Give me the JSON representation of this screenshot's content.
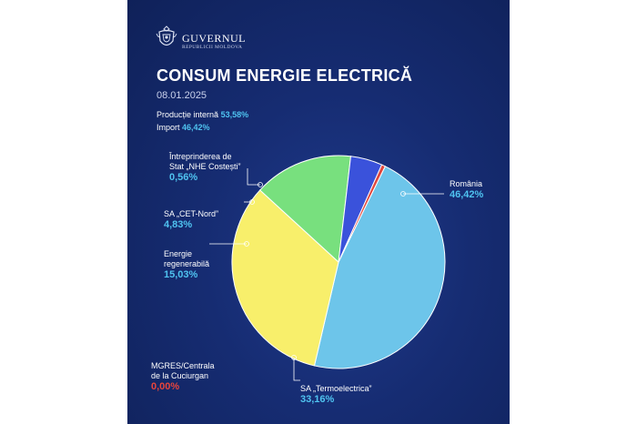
{
  "brand": {
    "name": "GUVERNUL",
    "sub": "REPUBLICII MOLDOVA"
  },
  "title": "CONSUM ENERGIE ELECTRICĂ",
  "date": "08.01.2025",
  "summary": {
    "internal_label": "Producție internă",
    "internal_value": "53,58%",
    "import_label": "Import",
    "import_value": "46,42%"
  },
  "chart_data": {
    "type": "pie",
    "title": "CONSUM ENERGIE ELECTRICĂ",
    "slices": [
      {
        "name": "România",
        "value": 46.42,
        "label": "46,42%",
        "color": "#6dc5ea"
      },
      {
        "name": "SA „Termoelectrica”",
        "value": 33.16,
        "label": "33,16%",
        "color": "#f8ef6b"
      },
      {
        "name": "Energie regenerabilă",
        "value": 15.03,
        "label": "15,03%",
        "color": "#78e07e"
      },
      {
        "name": "SA „CET-Nord”",
        "value": 4.83,
        "label": "4,83%",
        "color": "#3a52db"
      },
      {
        "name": "Întreprinderea de Stat „NHE Costești”",
        "value": 0.56,
        "label": "0,56%",
        "color": "#e0463c"
      },
      {
        "name": "MGRES/Centrala de la Cuciurgan",
        "value": 0.0,
        "label": "0,00%",
        "color": "#e8453c"
      }
    ]
  },
  "labels": {
    "romania": {
      "l1": "România",
      "v": "46,42%"
    },
    "termo": {
      "l1": "SA „Termoelectrica”",
      "v": "33,16%"
    },
    "regen": {
      "l1": "Energie",
      "l2": "regenerabilă",
      "v": "15,03%"
    },
    "cet": {
      "l1": "SA „CET-Nord”",
      "v": "4,83%"
    },
    "nhe": {
      "l1": "Întreprinderea de",
      "l2": "Stat „NHE Costești”",
      "v": "0,56%"
    },
    "mgres": {
      "l1": "MGRES/Centrala",
      "l2": "de la Cuciurgan",
      "v": "0,00%"
    }
  },
  "icons": {
    "emblem": "coat-of-arms-icon"
  }
}
